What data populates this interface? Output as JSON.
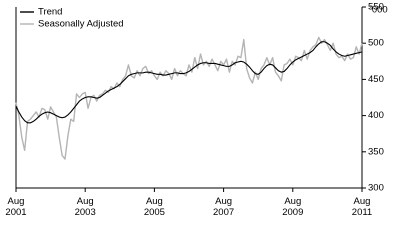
{
  "chart_data": {
    "type": "line",
    "y_label": "'000",
    "x": [
      "Aug 2001",
      "Sep 2001",
      "Oct 2001",
      "Nov 2001",
      "Dec 2001",
      "Jan 2002",
      "Feb 2002",
      "Mar 2002",
      "Apr 2002",
      "May 2002",
      "Jun 2002",
      "Jul 2002",
      "Aug 2002",
      "Sep 2002",
      "Oct 2002",
      "Nov 2002",
      "Dec 2002",
      "Jan 2003",
      "Feb 2003",
      "Mar 2003",
      "Apr 2003",
      "May 2003",
      "Jun 2003",
      "Jul 2003",
      "Aug 2003",
      "Sep 2003",
      "Oct 2003",
      "Nov 2003",
      "Dec 2003",
      "Jan 2004",
      "Feb 2004",
      "Mar 2004",
      "Apr 2004",
      "May 2004",
      "Jun 2004",
      "Jul 2004",
      "Aug 2004",
      "Sep 2004",
      "Oct 2004",
      "Nov 2004",
      "Dec 2004",
      "Jan 2005",
      "Feb 2005",
      "Mar 2005",
      "Apr 2005",
      "May 2005",
      "Jun 2005",
      "Jul 2005",
      "Aug 2005",
      "Sep 2005",
      "Oct 2005",
      "Nov 2005",
      "Dec 2005",
      "Jan 2006",
      "Feb 2006",
      "Mar 2006",
      "Apr 2006",
      "May 2006",
      "Jun 2006",
      "Jul 2006",
      "Aug 2006",
      "Sep 2006",
      "Oct 2006",
      "Nov 2006",
      "Dec 2006",
      "Jan 2007",
      "Feb 2007",
      "Mar 2007",
      "Apr 2007",
      "May 2007",
      "Jun 2007",
      "Jul 2007",
      "Aug 2007",
      "Sep 2007",
      "Oct 2007",
      "Nov 2007",
      "Dec 2007",
      "Jan 2008",
      "Feb 2008",
      "Mar 2008",
      "Apr 2008",
      "May 2008",
      "Jun 2008",
      "Jul 2008",
      "Aug 2008",
      "Sep 2008",
      "Oct 2008",
      "Nov 2008",
      "Dec 2008",
      "Jan 2009",
      "Feb 2009",
      "Mar 2009",
      "Apr 2009",
      "May 2009",
      "Jun 2009",
      "Jul 2009",
      "Aug 2009",
      "Sep 2009",
      "Oct 2009",
      "Nov 2009",
      "Dec 2009",
      "Jan 2010",
      "Feb 2010",
      "Mar 2010",
      "Apr 2010",
      "May 2010",
      "Jun 2010",
      "Jul 2010",
      "Aug 2010",
      "Sep 2010",
      "Oct 2010",
      "Nov 2010",
      "Dec 2010",
      "Jan 2011",
      "Feb 2011",
      "Mar 2011",
      "Apr 2011",
      "May 2011",
      "Jun 2011",
      "Jul 2011",
      "Aug 2011"
    ],
    "series": [
      {
        "name": "Trend",
        "color": "#000000",
        "values": [
          413,
          405,
          398,
          393,
          390,
          390,
          392,
          395,
          399,
          402,
          404,
          405,
          404,
          402,
          400,
          398,
          397,
          398,
          401,
          405,
          410,
          415,
          420,
          423,
          425,
          426,
          426,
          425,
          424,
          425,
          428,
          431,
          434,
          436,
          438,
          440,
          443,
          447,
          451,
          455,
          457,
          458,
          459,
          459,
          459,
          460,
          460,
          459,
          458,
          457,
          457,
          456,
          456,
          457,
          458,
          459,
          459,
          458,
          458,
          459,
          461,
          464,
          467,
          470,
          472,
          473,
          473,
          472,
          472,
          472,
          471,
          470,
          469,
          468,
          468,
          470,
          473,
          474,
          475,
          474,
          471,
          467,
          462,
          458,
          457,
          460,
          465,
          469,
          471,
          470,
          466,
          462,
          460,
          461,
          465,
          470,
          474,
          477,
          479,
          481,
          483,
          485,
          487,
          490,
          495,
          499,
          502,
          502,
          500,
          497,
          492,
          488,
          485,
          483,
          482,
          483,
          484,
          485,
          486,
          487,
          488
        ]
      },
      {
        "name": "Seasonally Adjusted",
        "color": "#b4b4b4",
        "values": [
          418,
          400,
          370,
          352,
          392,
          395,
          400,
          405,
          398,
          410,
          408,
          395,
          412,
          405,
          398,
          370,
          345,
          340,
          372,
          395,
          392,
          430,
          425,
          430,
          432,
          410,
          425,
          428,
          420,
          428,
          430,
          435,
          432,
          440,
          437,
          445,
          440,
          450,
          455,
          470,
          455,
          452,
          462,
          455,
          465,
          468,
          458,
          462,
          455,
          450,
          460,
          455,
          462,
          458,
          450,
          465,
          455,
          462,
          458,
          455,
          470,
          460,
          480,
          465,
          485,
          470,
          475,
          468,
          478,
          470,
          462,
          475,
          470,
          478,
          460,
          475,
          470,
          482,
          480,
          505,
          465,
          452,
          445,
          460,
          450,
          465,
          470,
          480,
          470,
          480,
          460,
          455,
          448,
          470,
          472,
          478,
          470,
          482,
          480,
          476,
          490,
          478,
          490,
          495,
          498,
          508,
          500,
          505,
          498,
          490,
          500,
          485,
          480,
          482,
          476,
          485,
          478,
          480,
          495,
          485,
          500
        ]
      }
    ],
    "xticks": [
      "Aug 2001",
      "Aug 2003",
      "Aug 2005",
      "Aug 2007",
      "Aug 2009",
      "Aug 2011"
    ],
    "ylim": [
      300,
      550
    ],
    "yticks": [
      300,
      350,
      400,
      450,
      500,
      550
    ],
    "legend": "top-left"
  }
}
